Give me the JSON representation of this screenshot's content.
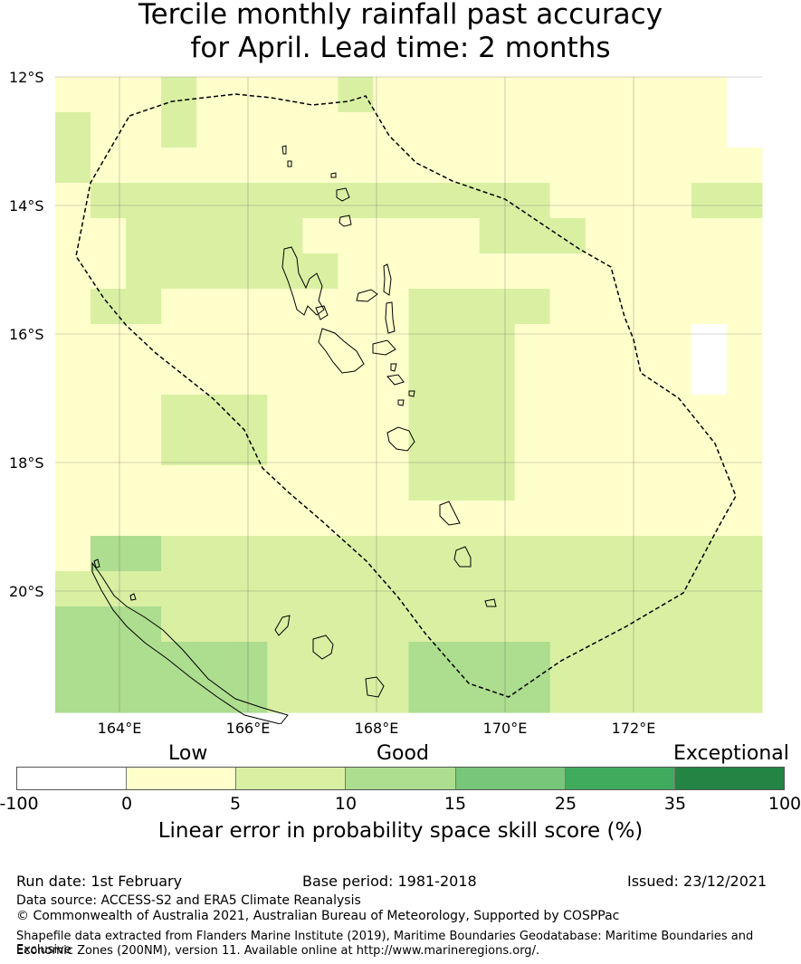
{
  "title": {
    "line1": "Tercile monthly rainfall past accuracy",
    "line2": "for April. Lead time: 2 months"
  },
  "map": {
    "lat_labels": [
      "12°S",
      "14°S",
      "16°S",
      "18°S",
      "20°S"
    ],
    "lon_labels": [
      "164°E",
      "166°E",
      "168°E",
      "170°E",
      "172°E"
    ],
    "grid": {
      "lat_range": [
        -12,
        -21.9
      ],
      "lon_range": [
        163,
        174
      ],
      "rows": [
        "LLLGLLLLGLLLLLLLLLLW",
        "GLLGLLLLLLLLLLLLLLLW",
        "GLLLLLLLLLLLLLLLLLLL",
        "LGGGGGGGGGGGGGLLLLGG",
        "LLGGGGGLLLLLGGGLLLLL",
        "LLGGGGGGLLLLLLLLLLLL",
        "LGGLLLLLLLGGGGLLLLLL",
        "LLLLLLLLLLGGGLLLLLWL",
        "LLLLLLLLLLGGGLLLLLWL",
        "LLLGGGLLLLGGGLLLLLLL",
        "LLLGGGLLLLGGGLLLLLLL",
        "LLLLLLLLLLGGGLLLLLLL",
        "LLLLLLLLLLLLLLLLLLLL",
        "LMMGGGGGGGGGGGGGGGGG",
        "GGGGGGGGGGGGGGGGGGGG",
        "MMMGGGGGGGGGGGGGGGGG",
        "MMMMMMGGGGMMMMGGGGGG",
        "MMMMMMGGGGMMMMGGGGGG"
      ]
    }
  },
  "colorbar": {
    "categories": [
      "Low",
      "Good",
      "Exceptional"
    ],
    "colors": [
      "#ffffff",
      "#ffffcc",
      "#d9f0a3",
      "#addd8e",
      "#78c679",
      "#41ab5d",
      "#238443"
    ],
    "ticks": [
      "-100",
      "0",
      "5",
      "10",
      "15",
      "25",
      "35",
      "100"
    ],
    "label": "Linear error in probability space skill score (%)"
  },
  "footer": {
    "run_date": "Run date: 1st February",
    "base_period": "Base period: 1981-2018",
    "issued": "Issued: 23/12/2021",
    "data_source": "Data source: ACCESS-S2 and ERA5 Climate Reanalysis",
    "copyright": "© Commonwealth of Australia 2021, Australian Bureau of Meteorology, Supported by COSPPac",
    "shapefile_line1": "Shapefile data extracted from Flanders Marine Institute (2019), Maritime Boundaries Geodatabase: Maritime Boundaries and Exclusive",
    "shapefile_line2": "Economic Zones (200NM), version 11. Available online at http://www.marineregions.org/."
  }
}
